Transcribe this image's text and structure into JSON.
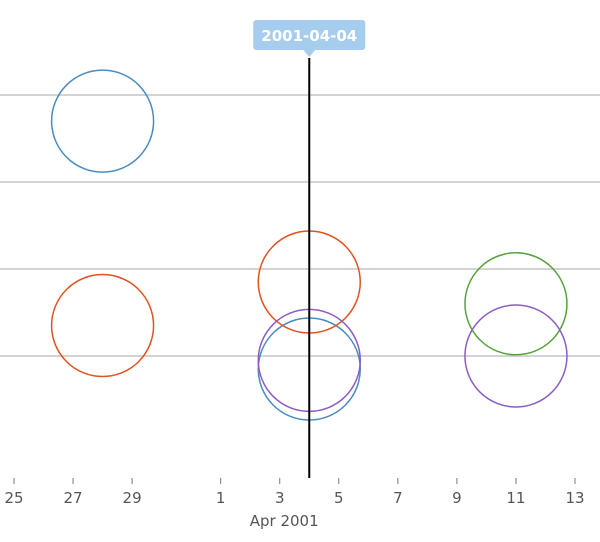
{
  "chart_data": {
    "type": "scatter",
    "x_axis": {
      "type": "time",
      "range": [
        "2001-03-25",
        "2001-04-13"
      ],
      "tick_labels": [
        "25",
        "27",
        "29",
        "1",
        "3",
        "5",
        "7",
        "9",
        "11",
        "13"
      ],
      "tick_dates": [
        "2001-03-25",
        "2001-03-27",
        "2001-03-29",
        "2001-04-01",
        "2001-04-03",
        "2001-04-05",
        "2001-04-07",
        "2001-04-09",
        "2001-04-11",
        "2001-04-13"
      ],
      "month_label": "Apr 2001",
      "month_label_date": "2001-04-02"
    },
    "y_axis": {
      "range": [
        0,
        4
      ],
      "gridlines": [
        1,
        2,
        3,
        4
      ],
      "tick_labels_shown": false
    },
    "grid": true,
    "crosshair": {
      "date": "2001-04-04",
      "label": "2001-04-04"
    },
    "series": [
      {
        "color": "#4a8cbf",
        "points": [
          {
            "x": "2001-03-28",
            "y": 3.7
          },
          {
            "x": "2001-04-04",
            "y": 0.85
          }
        ]
      },
      {
        "color": "#e0521f",
        "points": [
          {
            "x": "2001-03-28",
            "y": 1.35
          },
          {
            "x": "2001-04-04",
            "y": 1.85
          }
        ]
      },
      {
        "color": "#58a23c",
        "points": [
          {
            "x": "2001-04-11",
            "y": 1.6
          }
        ]
      },
      {
        "color": "#8c5cc4",
        "points": [
          {
            "x": "2001-04-04",
            "y": 0.95
          },
          {
            "x": "2001-04-11",
            "y": 1.0
          }
        ]
      }
    ],
    "legend": "none"
  }
}
